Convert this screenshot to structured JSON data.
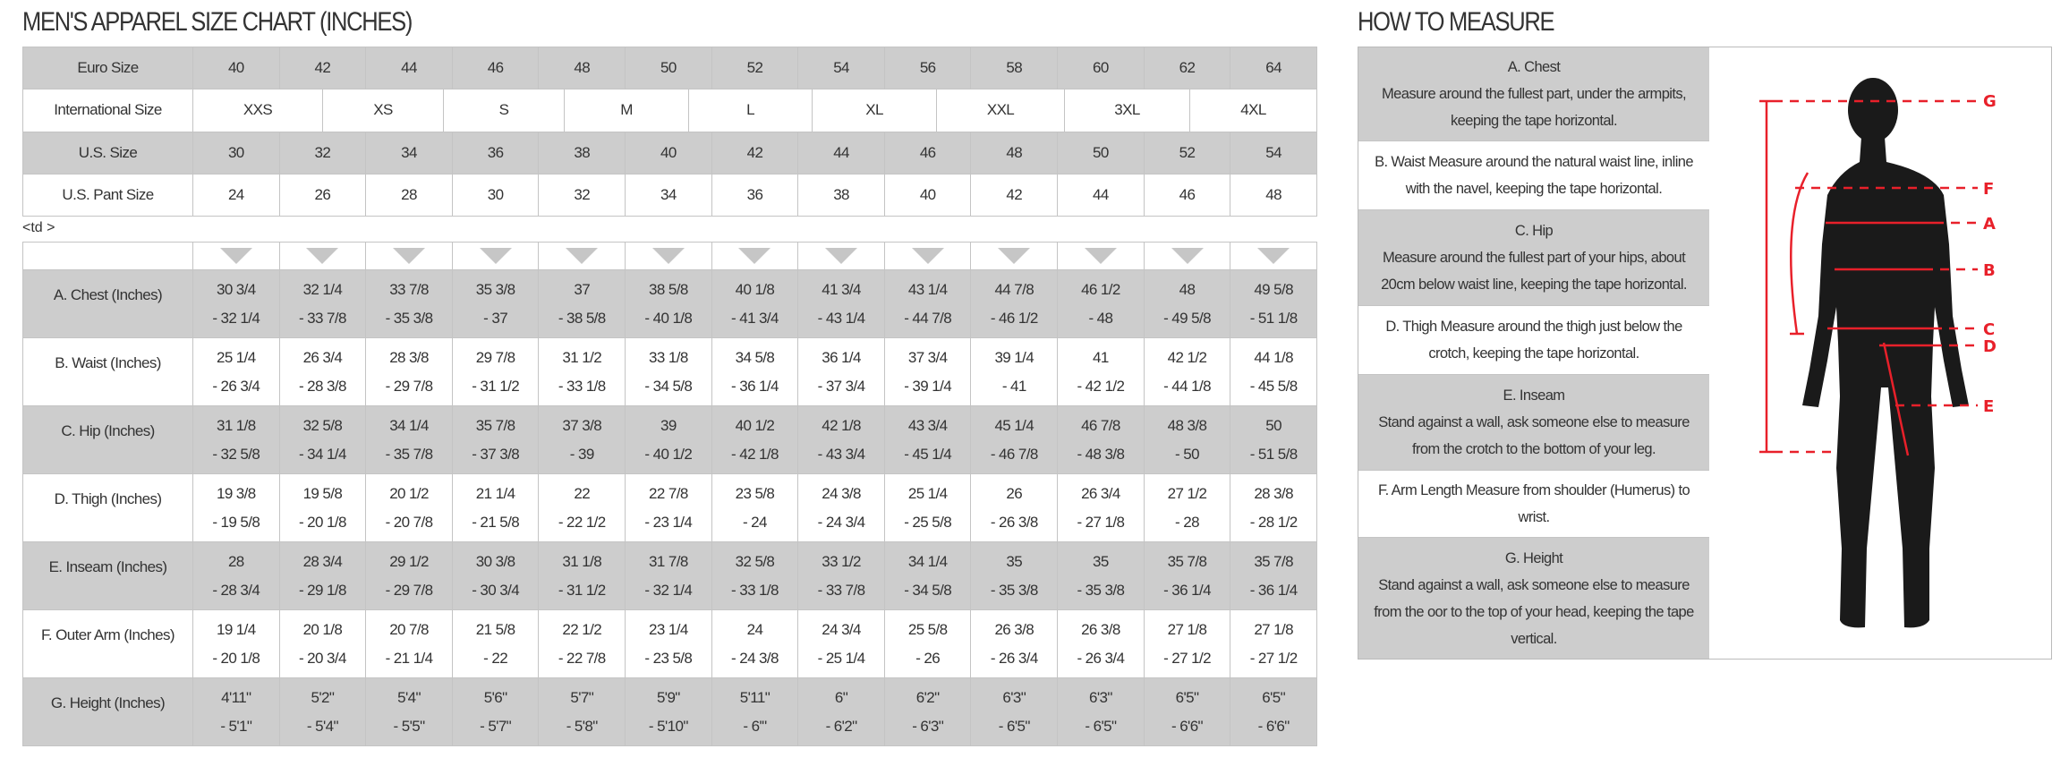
{
  "size_chart": {
    "title": "MEN'S APPAREL SIZE CHART (INCHES)",
    "euro": {
      "label": "Euro Size",
      "values": [
        "40",
        "42",
        "44",
        "46",
        "48",
        "50",
        "52",
        "54",
        "56",
        "58",
        "60",
        "62",
        "64"
      ]
    },
    "international": {
      "label": "International Size",
      "values": [
        "XXS",
        "XS",
        "S",
        "M",
        "L",
        "XL",
        "XXL",
        "3XL",
        "4XL"
      ]
    },
    "us": {
      "label": "U.S. Size",
      "values": [
        "30",
        "32",
        "34",
        "36",
        "38",
        "40",
        "42",
        "44",
        "46",
        "48",
        "50",
        "52",
        "54"
      ]
    },
    "us_pant": {
      "label": "U.S. Pant Size",
      "values": [
        "24",
        "26",
        "28",
        "30",
        "32",
        "34",
        "36",
        "38",
        "40",
        "42",
        "44",
        "46",
        "48"
      ]
    },
    "stray_text": "<td >",
    "arrow_icon": "triangle-down-icon",
    "measurements": [
      {
        "label": "A. Chest (Inches)",
        "from": [
          "30 3/4",
          "32 1/4",
          "33 7/8",
          "35 3/8",
          "37",
          "38 5/8",
          "40 1/8",
          "41 3/4",
          "43 1/4",
          "44 7/8",
          "46 1/2",
          "48",
          "49 5/8"
        ],
        "to": [
          "- 32 1/4",
          "- 33 7/8",
          "- 35 3/8",
          "- 37",
          "- 38 5/8",
          "- 40 1/8",
          "- 41 3/4",
          "- 43 1/4",
          "- 44 7/8",
          "- 46 1/2",
          "- 48",
          "- 49 5/8",
          "- 51 1/8"
        ]
      },
      {
        "label": "B. Waist (Inches)",
        "from": [
          "25 1/4",
          "26 3/4",
          "28 3/8",
          "29 7/8",
          "31 1/2",
          "33 1/8",
          "34 5/8",
          "36 1/4",
          "37 3/4",
          "39 1/4",
          "41",
          "42 1/2",
          "44 1/8"
        ],
        "to": [
          "- 26 3/4",
          "- 28 3/8",
          "- 29 7/8",
          "- 31 1/2",
          "- 33 1/8",
          "- 34 5/8",
          "- 36 1/4",
          "- 37 3/4",
          "- 39 1/4",
          "- 41",
          "- 42 1/2",
          "- 44 1/8",
          "- 45 5/8"
        ]
      },
      {
        "label": "C. Hip (Inches)",
        "from": [
          "31 1/8",
          "32 5/8",
          "34 1/4",
          "35 7/8",
          "37 3/8",
          "39",
          "40 1/2",
          "42 1/8",
          "43 3/4",
          "45 1/4",
          "46 7/8",
          "48 3/8",
          "50"
        ],
        "to": [
          "- 32 5/8",
          "- 34 1/4",
          "- 35 7/8",
          "- 37 3/8",
          "- 39",
          "- 40 1/2",
          "- 42 1/8",
          "- 43 3/4",
          "- 45 1/4",
          "- 46 7/8",
          "- 48 3/8",
          "- 50",
          "- 51 5/8"
        ]
      },
      {
        "label": "D. Thigh (Inches)",
        "from": [
          "19 3/8",
          "19 5/8",
          "20 1/2",
          "21 1/4",
          "22",
          "22 7/8",
          "23 5/8",
          "24 3/8",
          "25 1/4",
          "26",
          "26 3/4",
          "27 1/2",
          "28 3/8"
        ],
        "to": [
          "- 19 5/8",
          "- 20 1/8",
          "- 20 7/8",
          "- 21 5/8",
          "- 22 1/2",
          "- 23 1/4",
          "- 24",
          "- 24 3/4",
          "- 25 5/8",
          "- 26 3/8",
          "- 27 1/8",
          "- 28",
          "- 28 1/2"
        ]
      },
      {
        "label": "E. Inseam (Inches)",
        "from": [
          "28",
          "28 3/4",
          "29 1/2",
          "30 3/8",
          "31 1/8",
          "31 7/8",
          "32 5/8",
          "33 1/2",
          "34 1/4",
          "35",
          "35",
          "35 7/8",
          "35 7/8"
        ],
        "to": [
          "- 28 3/4",
          "- 29 1/8",
          "- 29 7/8",
          "- 30 3/4",
          "- 31 1/2",
          "- 32 1/4",
          "- 33 1/8",
          "- 33 7/8",
          "- 34 5/8",
          "- 35 3/8",
          "- 35 3/8",
          "- 36 1/4",
          "- 36 1/4"
        ]
      },
      {
        "label": "F. Outer Arm (Inches)",
        "from": [
          "19 1/4",
          "20 1/8",
          "20 7/8",
          "21 5/8",
          "22 1/2",
          "23 1/4",
          "24",
          "24 3/4",
          "25 5/8",
          "26 3/8",
          "26 3/8",
          "27 1/8",
          "27 1/8"
        ],
        "to": [
          "- 20 1/8",
          "- 20 3/4",
          "- 21 1/4",
          "- 22",
          "- 22 7/8",
          "- 23 5/8",
          "- 24 3/8",
          "- 25 1/4",
          "- 26",
          "- 26 3/4",
          "- 26 3/4",
          "- 27 1/2",
          "- 27 1/2"
        ]
      },
      {
        "label": "G. Height (Inches)",
        "from": [
          "4'11\"",
          "5'2\"",
          "5'4\"",
          "5'6\"",
          "5'7\"",
          "5'9\"",
          "5'11\"",
          "6\"",
          "6'2\"",
          "6'3\"",
          "6'3\"",
          "6'5\"",
          "6'5\""
        ],
        "to": [
          "- 5'1\"",
          "- 5'4\"",
          "- 5'5\"",
          "- 5'7\"",
          "- 5'8\"",
          "- 5'10\"",
          "- 6'\"",
          "- 6'2\"",
          "- 6'3\"",
          "- 6'5\"",
          "- 6'5\"",
          "- 6'6\"",
          "- 6'6\""
        ]
      }
    ]
  },
  "how_to_measure": {
    "title": "HOW TO MEASURE",
    "items": [
      {
        "heading": "A. Chest",
        "text": "Measure around the fullest part, under the armpits, keeping the tape horizontal."
      },
      {
        "heading": "",
        "text": "B. Waist Measure around the natural waist line, inline with the navel, keeping the tape horizontal."
      },
      {
        "heading": "C. Hip",
        "text": "Measure around the fullest part of your hips, about 20cm below waist line, keeping the tape horizontal."
      },
      {
        "heading": "",
        "text": "D. Thigh Measure around the thigh just below the crotch, keeping the tape horizontal."
      },
      {
        "heading": "E. Inseam",
        "text": "Stand against a wall, ask someone else to measure from the crotch to the bottom of your leg."
      },
      {
        "heading": "",
        "text": "F. Arm Length Measure from shoulder (Humerus) to wrist."
      },
      {
        "heading": "G. Height",
        "text": "Stand against a wall, ask someone else to measure from the oor to the top of your head, keeping the tape vertical."
      }
    ],
    "figure_labels": [
      "G",
      "F",
      "A",
      "B",
      "C",
      "D",
      "E"
    ],
    "accent_color": "#e8202a"
  }
}
